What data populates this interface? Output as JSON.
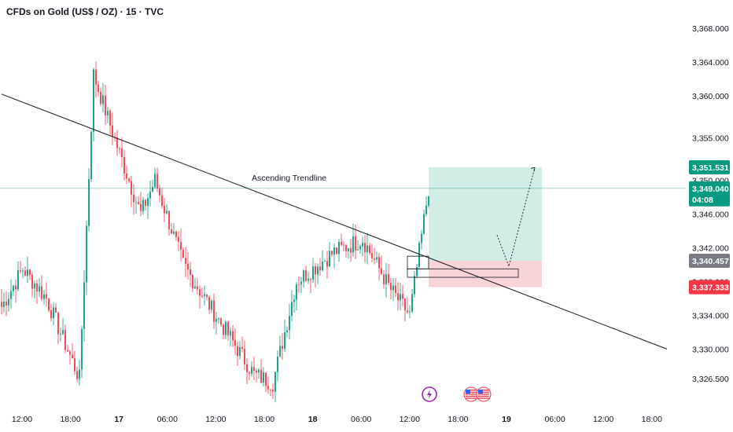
{
  "header": {
    "title": "CFDs on Gold (US$ / OZ) · 15 · TVC"
  },
  "colors": {
    "up": "#089981",
    "down": "#f23645",
    "trend": "#131722",
    "target_zone": "#c9eae2",
    "stop_zone": "#f8cfd3",
    "price_tag": "#089981",
    "target_tag": "#089981",
    "entry_tag": "#787b86",
    "stop_tag": "#f23645"
  },
  "chart_data": {
    "type": "candlestick",
    "title": "CFDs on Gold (US$ / OZ) · 15 · TVC",
    "y_ticks": [
      "3,368.000",
      "3,364.000",
      "3,360.000",
      "3,355.000",
      "3,350.000",
      "3,346.000",
      "3,342.000",
      "3,338.000",
      "3,334.000",
      "3,330.000",
      "3,326.500"
    ],
    "y_tick_values": [
      3368,
      3364,
      3360,
      3355,
      3350,
      3346,
      3342,
      3338,
      3334,
      3330,
      3326.5
    ],
    "x_ticks": [
      {
        "label": "12:00",
        "bold": false
      },
      {
        "label": "18:00",
        "bold": false
      },
      {
        "label": "17",
        "bold": true
      },
      {
        "label": "06:00",
        "bold": false
      },
      {
        "label": "12:00",
        "bold": false
      },
      {
        "label": "18:00",
        "bold": false
      },
      {
        "label": "18",
        "bold": true
      },
      {
        "label": "06:00",
        "bold": false
      },
      {
        "label": "12:00",
        "bold": false
      },
      {
        "label": "18:00",
        "bold": false
      },
      {
        "label": "19",
        "bold": true
      },
      {
        "label": "06:00",
        "bold": false
      },
      {
        "label": "12:00",
        "bold": false
      },
      {
        "label": "18:00",
        "bold": false
      }
    ],
    "annotations": {
      "trendline_label": "Ascending Trendline",
      "trendline": {
        "from": {
          "bar": 0,
          "price": 3360.2
        },
        "to": {
          "bar": 282,
          "price": 3330.0
        }
      },
      "target_price": "3,351.531",
      "current_price": "3,349.040",
      "countdown": "04:08",
      "entry_price": "3,340.457",
      "stop_price": "3,337.333",
      "target_value": 3351.531,
      "current_value": 3349.04,
      "entry_value": 3340.457,
      "stop_value": 3337.333
    },
    "segments": [
      {
        "start": 3334.5,
        "end": 3339.5,
        "bars": 10
      },
      {
        "start": 3339.5,
        "end": 3336.0,
        "bars": 10
      },
      {
        "start": 3336.0,
        "end": 3326.5,
        "bars": 14
      },
      {
        "start": 3326.5,
        "end": 3362.5,
        "bars": 6
      },
      {
        "start": 3362.5,
        "end": 3354.0,
        "bars": 10
      },
      {
        "start": 3354.0,
        "end": 3346.0,
        "bars": 10
      },
      {
        "start": 3346.0,
        "end": 3350.0,
        "bars": 6
      },
      {
        "start": 3350.0,
        "end": 3340.0,
        "bars": 12
      },
      {
        "start": 3340.0,
        "end": 3333.0,
        "bars": 16
      },
      {
        "start": 3333.0,
        "end": 3327.0,
        "bars": 14
      },
      {
        "start": 3327.0,
        "end": 3326.0,
        "bars": 8
      },
      {
        "start": 3326.0,
        "end": 3338.0,
        "bars": 10
      },
      {
        "start": 3338.0,
        "end": 3341.5,
        "bars": 16
      },
      {
        "start": 3341.5,
        "end": 3343.0,
        "bars": 12
      },
      {
        "start": 3343.0,
        "end": 3337.0,
        "bars": 12
      },
      {
        "start": 3337.0,
        "end": 3334.0,
        "bars": 8
      },
      {
        "start": 3334.0,
        "end": 3349.0,
        "bars": 8
      }
    ]
  },
  "events": [
    "lightning-event-icon",
    "us-flag-event-icon",
    "us-flag-event-icon"
  ]
}
